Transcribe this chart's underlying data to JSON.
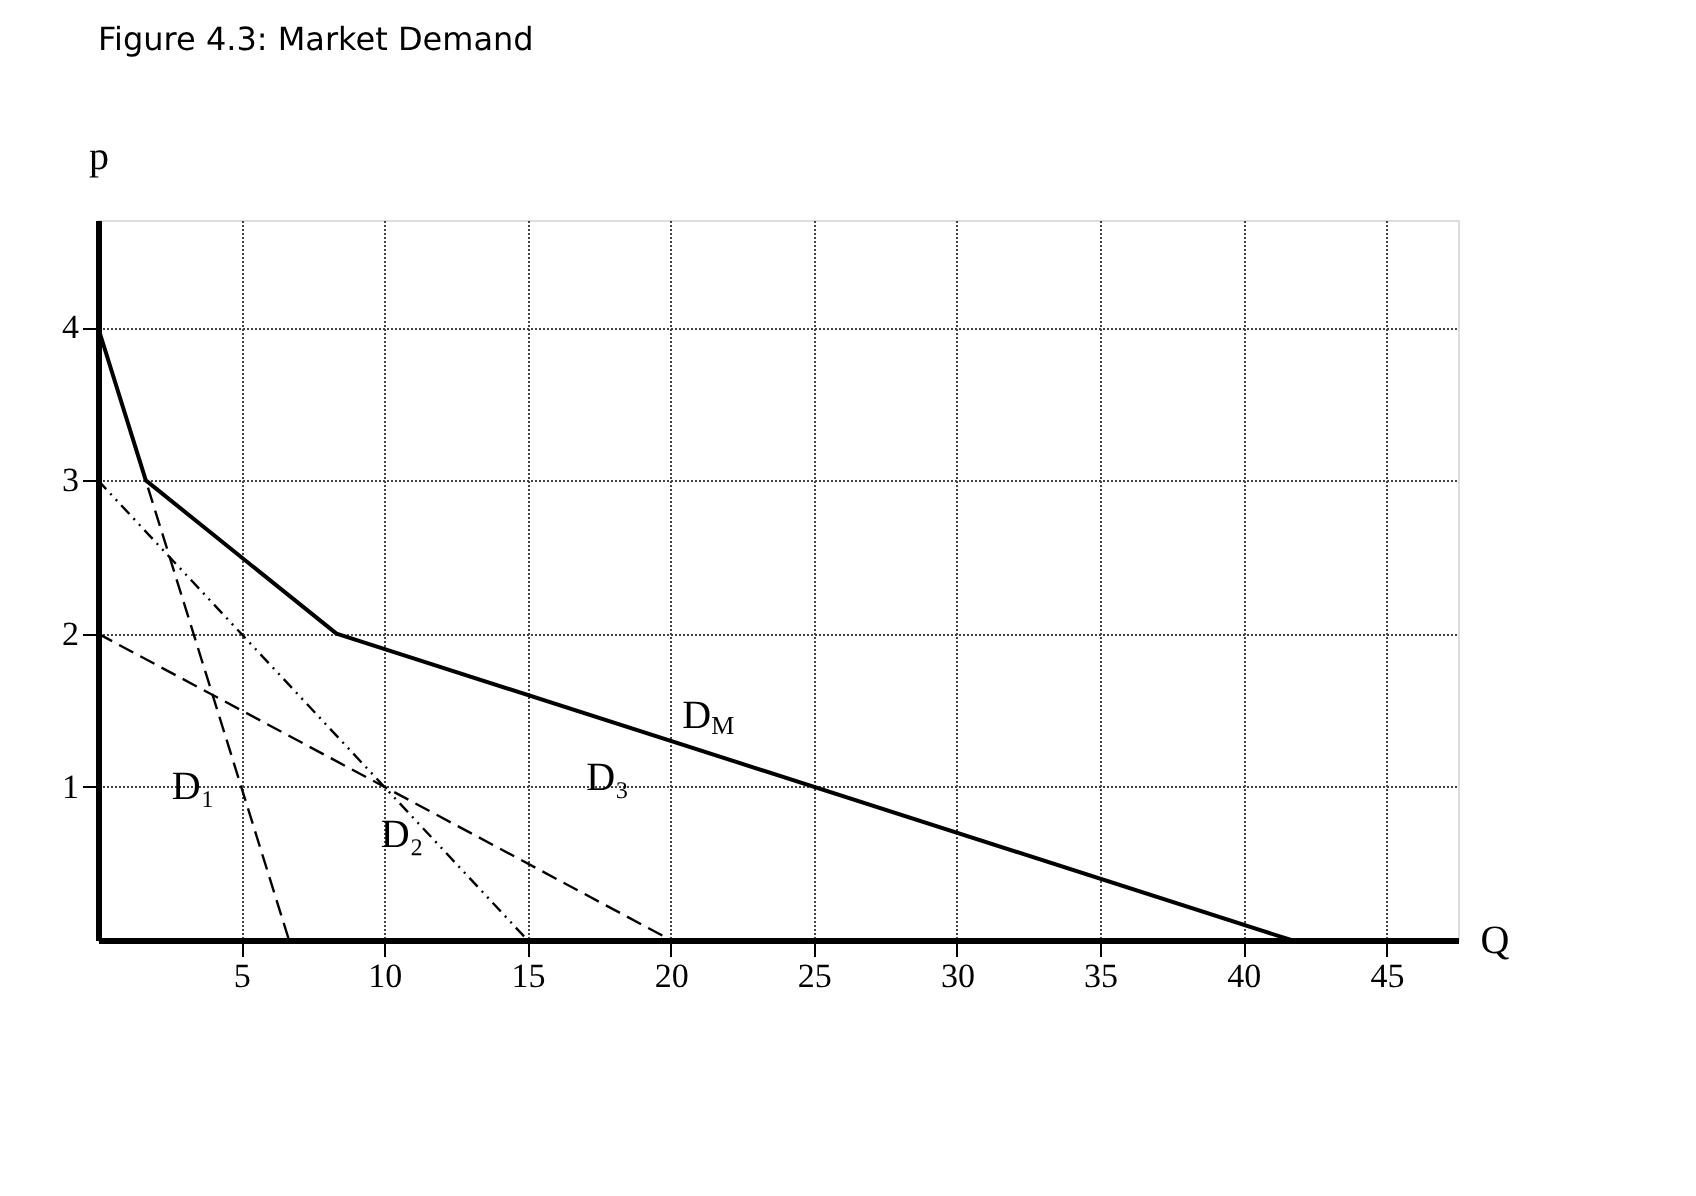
{
  "chart_data": {
    "type": "line",
    "title": "Figure 4.3: Market Demand",
    "xlabel": "Q",
    "ylabel": "p",
    "xlim": [
      0,
      47.5
    ],
    "ylim": [
      0,
      4.7
    ],
    "xticks": [
      5,
      10,
      15,
      20,
      25,
      30,
      35,
      40,
      45
    ],
    "yticks": [
      1,
      2,
      3,
      4
    ],
    "grid": true,
    "series": [
      {
        "color": "#000000",
        "line_style": "dashed",
        "x": [
          0,
          6.67
        ],
        "values": [
          4,
          0
        ]
      },
      {
        "color": "#000000",
        "line_style": "dotted",
        "x": [
          0,
          15
        ],
        "values": [
          3,
          0
        ]
      },
      {
        "color": "#000000",
        "line_style": "dashed",
        "x": [
          0,
          20
        ],
        "values": [
          2,
          0
        ]
      },
      {
        "color": "#000000",
        "line_style": "solid",
        "x": [
          0,
          1.67,
          8.33,
          41.67
        ],
        "values": [
          4,
          3,
          2,
          0
        ]
      }
    ],
    "annotations": [
      {
        "text": "D₁",
        "x": 5,
        "y": 1
      },
      {
        "text": "D₂",
        "x": 11.25,
        "y": 0.75
      },
      {
        "text": "D₃",
        "x": 17.8,
        "y": 0.22
      },
      {
        "text": "D$_{M}$",
        "x": 21,
        "y": 1.24
      }
    ]
  }
}
